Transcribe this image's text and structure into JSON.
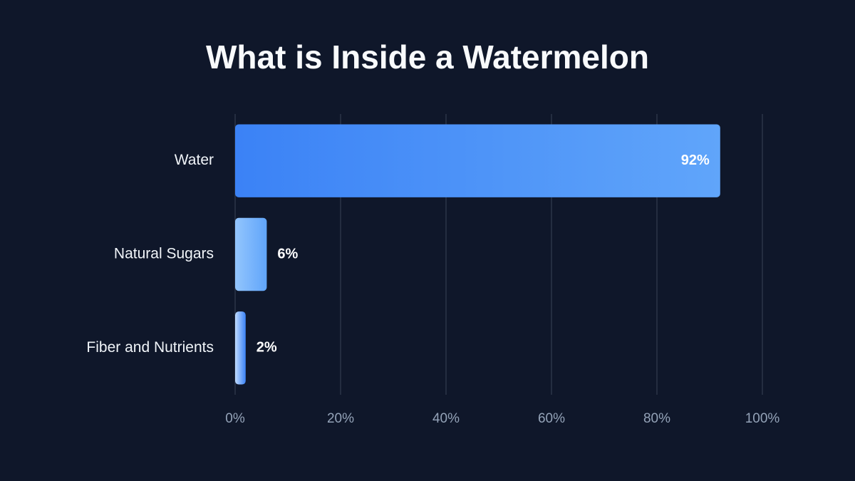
{
  "chart_data": {
    "type": "bar",
    "orientation": "horizontal",
    "title": "What is Inside a Watermelon",
    "categories": [
      "Water",
      "Natural Sugars",
      "Fiber and Nutrients"
    ],
    "values": [
      92,
      6,
      2
    ],
    "value_labels": [
      "92%",
      "6%",
      "2%"
    ],
    "colors": [
      [
        "#3b82f6",
        "#60a5fa"
      ],
      [
        "#93c5fd",
        "#60a5fa"
      ],
      [
        "#bfdbfe",
        "#3b82f6"
      ]
    ],
    "xlim": [
      0,
      100
    ],
    "xticks": [
      {
        "value": 0,
        "label": "0%"
      },
      {
        "value": 20,
        "label": "20%"
      },
      {
        "value": 40,
        "label": "40%"
      },
      {
        "value": 60,
        "label": "60%"
      },
      {
        "value": 80,
        "label": "80%"
      },
      {
        "value": 100,
        "label": "100%"
      }
    ],
    "grid": true
  }
}
